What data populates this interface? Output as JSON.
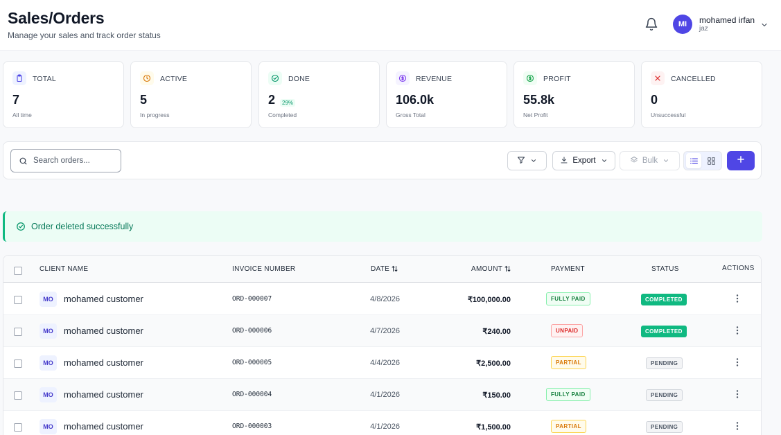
{
  "header": {
    "title": "Sales/Orders",
    "subtitle": "Manage your sales and track order status",
    "user": {
      "initials": "MI",
      "name": "mohamed irfan",
      "org": "jaz"
    }
  },
  "stats": [
    {
      "label": "TOTAL",
      "value": "7",
      "sub": "All time",
      "icon": "clipboard-icon",
      "color": "#4f46e5"
    },
    {
      "label": "ACTIVE",
      "value": "5",
      "sub": "In progress",
      "icon": "clock-icon",
      "color": "#d97706"
    },
    {
      "label": "DONE",
      "value": "2",
      "badge": "29%",
      "sub": "Completed",
      "icon": "check-circle-icon",
      "color": "#059669"
    },
    {
      "label": "REVENUE",
      "value": "106.0k",
      "sub": "Gross Total",
      "icon": "dollar-circle-icon",
      "color": "#7c3aed"
    },
    {
      "label": "PROFIT",
      "value": "55.8k",
      "sub": "Net Profit",
      "icon": "dollar-circle-icon",
      "color": "#16a34a"
    },
    {
      "label": "CANCELLED",
      "value": "0",
      "sub": "Unsuccessful",
      "icon": "x-icon",
      "color": "#dc2626"
    }
  ],
  "toolbar": {
    "search_placeholder": "Search orders...",
    "export_label": "Export",
    "bulk_label": "Bulk"
  },
  "alert": {
    "text": "Order deleted successfully"
  },
  "table": {
    "columns": {
      "client": "CLIENT NAME",
      "invoice": "INVOICE NUMBER",
      "date": "DATE",
      "amount": "AMOUNT",
      "payment": "PAYMENT",
      "status": "STATUS",
      "actions": "ACTIONS"
    },
    "rows": [
      {
        "initials": "MO",
        "client": "mohamed customer",
        "invoice": "ORD-000007",
        "date": "4/8/2026",
        "amount": "₹100,000.00",
        "payment": "FULLY PAID",
        "status": "COMPLETED"
      },
      {
        "initials": "MO",
        "client": "mohamed customer",
        "invoice": "ORD-000006",
        "date": "4/7/2026",
        "amount": "₹240.00",
        "payment": "UNPAID",
        "status": "COMPLETED"
      },
      {
        "initials": "MO",
        "client": "mohamed customer",
        "invoice": "ORD-000005",
        "date": "4/4/2026",
        "amount": "₹2,500.00",
        "payment": "PARTIAL",
        "status": "PENDING"
      },
      {
        "initials": "MO",
        "client": "mohamed customer",
        "invoice": "ORD-000004",
        "date": "4/1/2026",
        "amount": "₹150.00",
        "payment": "FULLY PAID",
        "status": "PENDING"
      },
      {
        "initials": "MO",
        "client": "mohamed customer",
        "invoice": "ORD-000003",
        "date": "4/1/2026",
        "amount": "₹1,500.00",
        "payment": "PARTIAL",
        "status": "PENDING"
      }
    ]
  },
  "colors": {
    "accent": "#4f46e5",
    "success": "#10b981"
  }
}
